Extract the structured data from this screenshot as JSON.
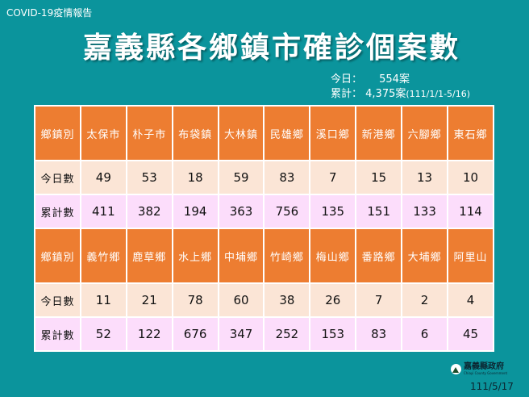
{
  "header": {
    "tag": "COVID-19疫情報告",
    "title": "嘉義縣各鄉鎮市確診個案數"
  },
  "summary": {
    "today_label": "今日：",
    "today_value": "554案",
    "total_label": "累計：",
    "total_value": "4,375案",
    "total_range": "(111/1/1-5/16)"
  },
  "colors": {
    "background": "#0b949c",
    "header_cell": "#ed7d31",
    "today_row": "#fbe5d6",
    "total_row": "#fcddfb"
  },
  "table": {
    "row_labels": {
      "town": "鄉鎮別",
      "today": "今日數",
      "total": "累計數"
    },
    "blocks": [
      {
        "towns": [
          "太保市",
          "朴子市",
          "布袋鎮",
          "大林鎮",
          "民雄鄉",
          "溪口鄉",
          "新港鄉",
          "六腳鄉",
          "東石鄉"
        ],
        "today": [
          "49",
          "53",
          "18",
          "59",
          "83",
          "7",
          "15",
          "13",
          "10"
        ],
        "total": [
          "411",
          "382",
          "194",
          "363",
          "756",
          "135",
          "151",
          "133",
          "114"
        ]
      },
      {
        "towns": [
          "義竹鄉",
          "鹿草鄉",
          "水上鄉",
          "中埔鄉",
          "竹崎鄉",
          "梅山鄉",
          "番路鄉",
          "大埔鄉",
          "阿里山"
        ],
        "today": [
          "11",
          "21",
          "78",
          "60",
          "38",
          "26",
          "7",
          "2",
          "4"
        ],
        "total": [
          "52",
          "122",
          "676",
          "347",
          "252",
          "153",
          "83",
          "6",
          "45"
        ]
      }
    ]
  },
  "footer": {
    "logo_name": "嘉義縣政府",
    "logo_sub": "Chiayi County Government",
    "date": "111/5/17"
  }
}
